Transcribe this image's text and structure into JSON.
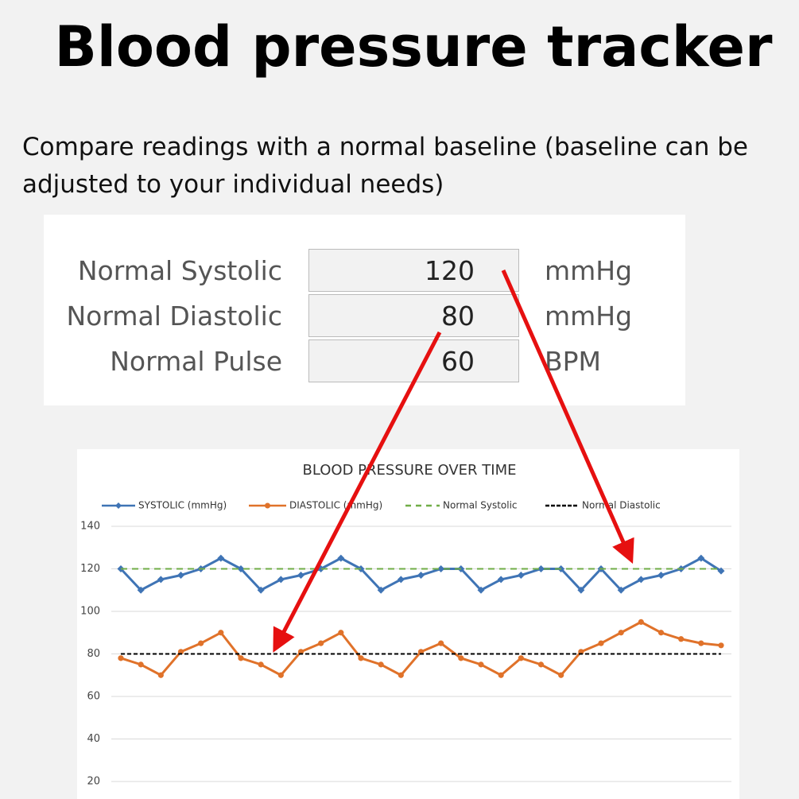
{
  "header": {
    "title": "Blood pressure tracker",
    "subtitle": "Compare readings with a normal baseline (baseline can be adjusted to your individual needs)"
  },
  "table": {
    "rows": [
      {
        "label": "Normal Systolic",
        "value": 120,
        "unit": "mmHg"
      },
      {
        "label": "Normal Diastolic",
        "value": 80,
        "unit": "mmHg"
      },
      {
        "label": "Normal Pulse",
        "value": 60,
        "unit": "BPM"
      }
    ]
  },
  "chart_data": {
    "type": "line",
    "title": "BLOOD PRESSURE OVER TIME",
    "legend": "top",
    "grid": true,
    "ylim": [
      20,
      140
    ],
    "yticks": [
      20,
      40,
      60,
      80,
      100,
      120,
      140
    ],
    "series": [
      {
        "name": "SYSTOLIC (mmHg)",
        "color": "#3f74b5",
        "marker": "diamond",
        "line_style": "solid",
        "values": [
          120,
          110,
          115,
          117,
          120,
          125,
          120,
          110,
          115,
          117,
          120,
          125,
          120,
          110,
          115,
          117,
          120,
          120,
          110,
          115,
          117,
          120,
          120,
          110,
          120,
          110,
          115,
          117,
          120,
          125,
          119
        ]
      },
      {
        "name": "DIASTOLIC (mmHg)",
        "color": "#e0722a",
        "marker": "circle",
        "line_style": "solid",
        "values": [
          78,
          75,
          70,
          81,
          85,
          90,
          78,
          75,
          70,
          81,
          85,
          90,
          78,
          75,
          70,
          81,
          85,
          78,
          75,
          70,
          78,
          75,
          70,
          81,
          85,
          90,
          95,
          90,
          87,
          85,
          84
        ]
      },
      {
        "name": "Normal Systolic",
        "color": "#70ad47",
        "marker": "none",
        "line_style": "dashed",
        "values": [
          120,
          120,
          120,
          120,
          120,
          120,
          120,
          120,
          120,
          120,
          120,
          120,
          120,
          120,
          120,
          120,
          120,
          120,
          120,
          120,
          120,
          120,
          120,
          120,
          120,
          120,
          120,
          120,
          120,
          120,
          120
        ]
      },
      {
        "name": "Normal Diastolic",
        "color": "#000000",
        "marker": "none",
        "line_style": "dashed",
        "values": [
          80,
          80,
          80,
          80,
          80,
          80,
          80,
          80,
          80,
          80,
          80,
          80,
          80,
          80,
          80,
          80,
          80,
          80,
          80,
          80,
          80,
          80,
          80,
          80,
          80,
          80,
          80,
          80,
          80,
          80,
          80
        ]
      }
    ]
  }
}
